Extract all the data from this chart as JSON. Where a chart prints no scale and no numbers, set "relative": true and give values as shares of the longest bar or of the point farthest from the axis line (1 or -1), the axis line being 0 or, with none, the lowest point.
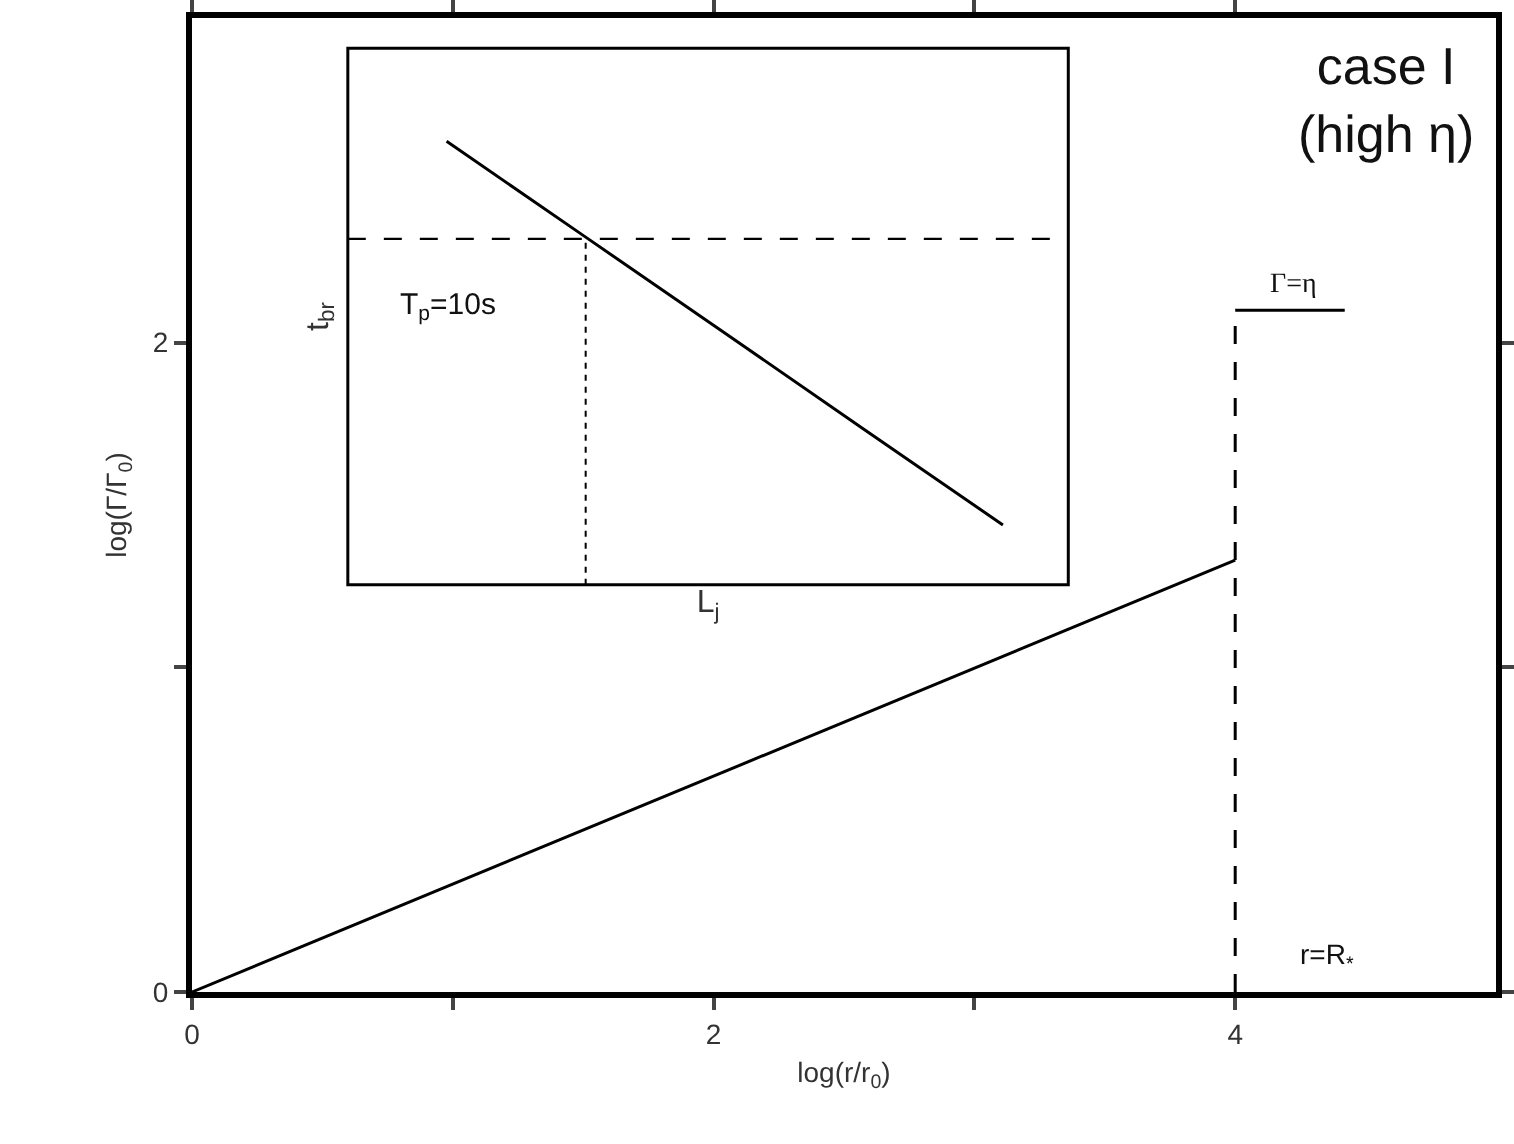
{
  "chart_data": [
    {
      "type": "line",
      "xlabel": "log(r/r$_{0}$)",
      "ylabel": "log(Γ/Γ$_{0}$)",
      "xlim": [
        0,
        5
      ],
      "ylim": [
        0,
        3
      ],
      "xticks": [
        0,
        {
          "value": 1,
          "label": null
        },
        2,
        {
          "value": 3,
          "label": null
        },
        4
      ],
      "yticks": [
        0,
        {
          "value": 1,
          "label": null
        },
        2
      ],
      "marker": "none",
      "series": [
        {
          "x": [
            0,
            4
          ],
          "values": [
            0,
            1.33
          ],
          "color": "#000000",
          "line_style": "solid"
        },
        {
          "x": [
            4,
            4
          ],
          "values": [
            0,
            2.1
          ],
          "color": "#000000",
          "line_style": "dashed"
        },
        {
          "x": [
            4,
            4.42
          ],
          "values": [
            2.1,
            2.1
          ],
          "color": "#000000",
          "line_style": "solid"
        }
      ],
      "annotations": [
        "case I\n(high η)",
        "Γ=η",
        "r=R$_{*}$"
      ]
    },
    {
      "type": "line",
      "relative": true,
      "xlabel": "L$_{j}$",
      "ylabel": "t$_{br}$",
      "categories": [
        null,
        null,
        null,
        null,
        null
      ],
      "marker": "none",
      "series": [
        {
          "values": [
            1,
            0.784,
            0.568,
            0.351,
            0.135
          ],
          "color": "#000000",
          "line_style": "solid"
        }
      ],
      "ref_lines": [
        {
          "axis": "y",
          "value": 0.78,
          "color": "#000000",
          "line_style": "dashed"
        }
      ],
      "annotations": [
        "T$_{p}$=10s"
      ]
    }
  ]
}
